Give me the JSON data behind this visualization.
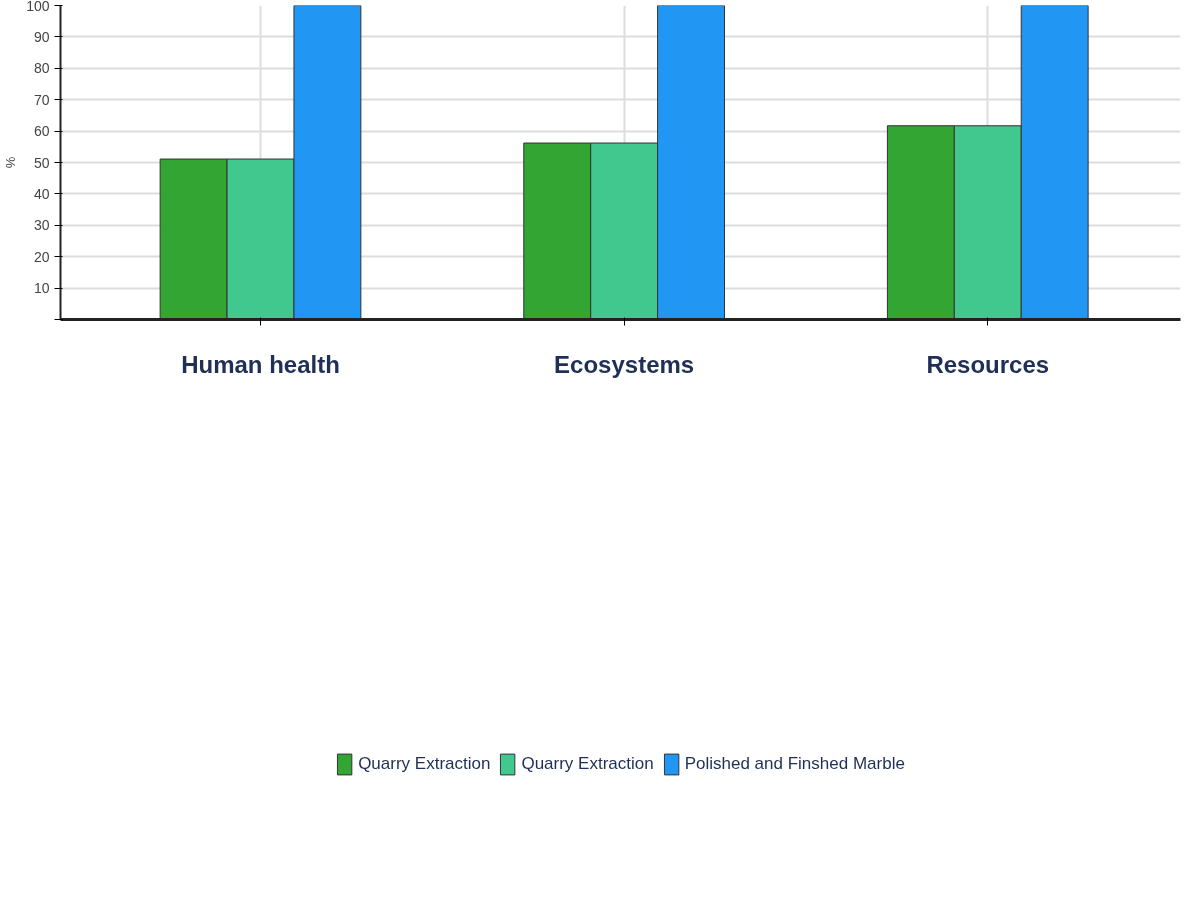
{
  "chart_data": {
    "type": "bar",
    "ylabel": "%",
    "categories": [
      "Human health",
      "Ecosystems",
      "Resources"
    ],
    "series": [
      {
        "name": "Quarry Extraction",
        "color": "#33a532",
        "values": [
          51.1,
          56.2,
          61.7
        ]
      },
      {
        "name": "Quarry Extraction",
        "color": "#40c88e",
        "values": [
          51.1,
          56.2,
          61.7
        ]
      },
      {
        "name": "Polished and Finshed Marble",
        "color": "#2196f3",
        "values": [
          100,
          100,
          100
        ]
      }
    ],
    "ylim": [
      0,
      100
    ],
    "yticks": [
      {
        "value": 0,
        "label": null
      },
      10,
      20,
      30,
      40,
      50,
      60,
      70,
      80,
      90,
      100
    ],
    "grid": true,
    "legend": "bottom"
  }
}
